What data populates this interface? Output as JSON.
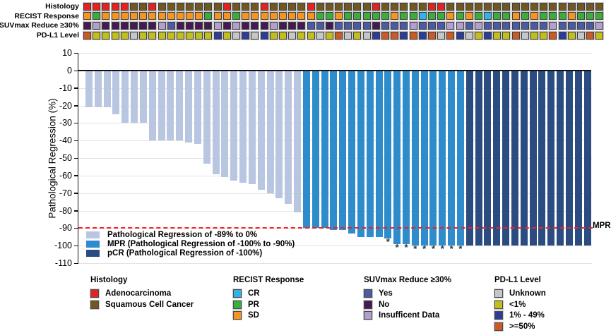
{
  "colors": {
    "bar_light": "#b8c6e2",
    "bar_mpr": "#2e8ccd",
    "bar_pcr": "#2b4c80",
    "mpr_line": "#ee2226",
    "histology": {
      "adeno": "#e32222",
      "squamous": "#715722"
    },
    "recist": {
      "CR": "#2fb4e9",
      "PR": "#3aad3a",
      "SD": "#f7941d"
    },
    "suv": {
      "yes": "#4a5aa8",
      "no": "#441a55",
      "insufficient": "#b29fd0"
    },
    "pdl1": {
      "unknown": "#c6c6c6",
      "lt1": "#c2bf1c",
      "1to49": "#2c3c99",
      "gte50": "#cd5a25"
    }
  },
  "tracks": [
    {
      "key": "histology",
      "label": "Histology",
      "cells": [
        "adeno",
        "adeno",
        "adeno",
        "adeno",
        "adeno",
        "squamous",
        "squamous",
        "adeno",
        "squamous",
        "squamous",
        "squamous",
        "squamous",
        "squamous",
        "squamous",
        "squamous",
        "adeno",
        "squamous",
        "squamous",
        "squamous",
        "adeno",
        "squamous",
        "squamous",
        "squamous",
        "squamous",
        "adeno",
        "squamous",
        "squamous",
        "squamous",
        "squamous",
        "squamous",
        "squamous",
        "adeno",
        "squamous",
        "squamous",
        "squamous",
        "squamous",
        "squamous",
        "adeno",
        "adeno",
        "squamous",
        "squamous",
        "squamous",
        "squamous",
        "squamous",
        "squamous",
        "squamous",
        "squamous",
        "squamous",
        "squamous",
        "squamous",
        "squamous",
        "squamous",
        "squamous",
        "squamous",
        "squamous",
        "squamous"
      ]
    },
    {
      "key": "recist",
      "label": "RECIST Response",
      "cells": [
        "SD",
        "PR",
        "SD",
        "SD",
        "SD",
        "SD",
        "SD",
        "SD",
        "SD",
        "SD",
        "SD",
        "SD",
        "SD",
        "PR",
        "SD",
        "SD",
        "PR",
        "SD",
        "SD",
        "SD",
        "SD",
        "SD",
        "SD",
        "SD",
        "SD",
        "PR",
        "PR",
        "SD",
        "PR",
        "PR",
        "PR",
        "PR",
        "PR",
        "SD",
        "PR",
        "PR",
        "CR",
        "PR",
        "PR",
        "SD",
        "PR",
        "SD",
        "PR",
        "CR",
        "PR",
        "PR",
        "SD",
        "PR",
        "SD",
        "PR",
        "PR",
        "PR",
        "SD",
        "PR",
        "PR",
        "PR"
      ]
    },
    {
      "key": "suv",
      "label": "SUVmax Reduce ≥30%",
      "cells": [
        "no",
        "insufficient",
        "no",
        "no",
        "no",
        "no",
        "no",
        "no",
        "insufficient",
        "yes",
        "no",
        "no",
        "no",
        "no",
        "insufficient",
        "no",
        "insufficient",
        "no",
        "no",
        "no",
        "insufficient",
        "no",
        "no",
        "no",
        "yes",
        "yes",
        "no",
        "yes",
        "yes",
        "yes",
        "yes",
        "no",
        "yes",
        "yes",
        "yes",
        "insufficient",
        "yes",
        "yes",
        "yes",
        "insufficient",
        "insufficient",
        "yes",
        "insufficient",
        "yes",
        "yes",
        "yes",
        "yes",
        "yes",
        "yes",
        "yes",
        "insufficient",
        "yes",
        "yes",
        "yes",
        "yes",
        "insufficient"
      ]
    },
    {
      "key": "pdl1",
      "label": "PD-L1 Level",
      "cells": [
        "gte50",
        "lt1",
        "lt1",
        "lt1",
        "lt1",
        "unknown",
        "lt1",
        "lt1",
        "lt1",
        "lt1",
        "lt1",
        "lt1",
        "lt1",
        "lt1",
        "1to49",
        "lt1",
        "unknown",
        "1to49",
        "unknown",
        "1to49",
        "lt1",
        "lt1",
        "unknown",
        "lt1",
        "lt1",
        "unknown",
        "lt1",
        "gte50",
        "unknown",
        "lt1",
        "unknown",
        "1to49",
        "gte50",
        "gte50",
        "1to49",
        "gte50",
        "1to49",
        "gte50",
        "unknown",
        "gte50",
        "1to49",
        "unknown",
        "lt1",
        "1to49",
        "lt1",
        "lt1",
        "gte50",
        "unknown",
        "lt1",
        "lt1",
        "gte50",
        "1to49",
        "lt1",
        "unknown",
        "gte50",
        "lt1"
      ]
    }
  ],
  "chart_data": {
    "type": "bar",
    "title": "",
    "xlabel": "",
    "ylabel": "Pathological Regression (%)",
    "ylim": [
      -110,
      10
    ],
    "yticks": [
      10,
      0,
      -10,
      -20,
      -30,
      -40,
      -50,
      -60,
      -70,
      -80,
      -90,
      -100,
      -110
    ],
    "grid": "horizontal, light gray",
    "legend_position": "inside lower-left",
    "n_patients": 56,
    "values": [
      -21,
      -21,
      -21,
      -25,
      -30,
      -30,
      -30,
      -40,
      -40,
      -40,
      -40,
      -41,
      -42,
      -53,
      -59,
      -61,
      -63,
      -64,
      -65,
      -68,
      -70,
      -73,
      -76,
      -81,
      -90,
      -90,
      -90,
      -91,
      -91,
      -93,
      -95,
      -95,
      -95,
      -96,
      -99,
      -99,
      -100,
      -100,
      -100,
      -100,
      -100,
      -100,
      -100,
      -100,
      -100,
      -100,
      -100,
      -100,
      -100,
      -100,
      -100,
      -100,
      -100,
      -100,
      -100,
      -100
    ],
    "bar_classes": [
      "light",
      "light",
      "light",
      "light",
      "light",
      "light",
      "light",
      "light",
      "light",
      "light",
      "light",
      "light",
      "light",
      "light",
      "light",
      "light",
      "light",
      "light",
      "light",
      "light",
      "light",
      "light",
      "light",
      "light",
      "mpr",
      "mpr",
      "mpr",
      "mpr",
      "mpr",
      "mpr",
      "mpr",
      "mpr",
      "mpr",
      "mpr",
      "mpr",
      "mpr",
      "mpr",
      "mpr",
      "mpr",
      "mpr",
      "mpr",
      "mpr",
      "pcr",
      "pcr",
      "pcr",
      "pcr",
      "pcr",
      "pcr",
      "pcr",
      "pcr",
      "pcr",
      "pcr",
      "pcr",
      "pcr",
      "pcr",
      "pcr"
    ],
    "asterisk_bars": [
      34,
      35,
      36,
      37,
      38,
      39,
      40,
      41,
      42
    ],
    "asterisk_char": "*",
    "mpr_line": {
      "value": -90,
      "label": "MPR"
    },
    "legend": [
      {
        "class": "bar_light",
        "label": "Pathological Regression of -89% to 0%"
      },
      {
        "class": "bar_mpr",
        "label": "MPR (Pathological Regression of -100% to -90%)"
      },
      {
        "class": "bar_pcr",
        "label": "pCR (Pathological Regression of -100%)"
      }
    ]
  },
  "bottom_legends": [
    {
      "title": "Histology",
      "items": [
        {
          "color_ref": "histology.adeno",
          "label": "Adenocarcinoma"
        },
        {
          "color_ref": "histology.squamous",
          "label": "Squamous Cell Cancer"
        }
      ]
    },
    {
      "title": "RECIST Response",
      "items": [
        {
          "color_ref": "recist.CR",
          "label": "CR"
        },
        {
          "color_ref": "recist.PR",
          "label": "PR"
        },
        {
          "color_ref": "recist.SD",
          "label": "SD"
        }
      ]
    },
    {
      "title": "SUVmax Reduce ≥30%",
      "items": [
        {
          "color_ref": "suv.yes",
          "label": "Yes"
        },
        {
          "color_ref": "suv.no",
          "label": "No"
        },
        {
          "color_ref": "suv.insufficient",
          "label": "Insufficent Data"
        }
      ]
    },
    {
      "title": "PD-L1 Level",
      "items": [
        {
          "color_ref": "pdl1.unknown",
          "label": "Unknown"
        },
        {
          "color_ref": "pdl1.lt1",
          "label": "<1%"
        },
        {
          "color_ref": "pdl1.1to49",
          "label": "1% - 49%"
        },
        {
          "color_ref": "pdl1.gte50",
          "label": ">=50%"
        }
      ]
    }
  ]
}
